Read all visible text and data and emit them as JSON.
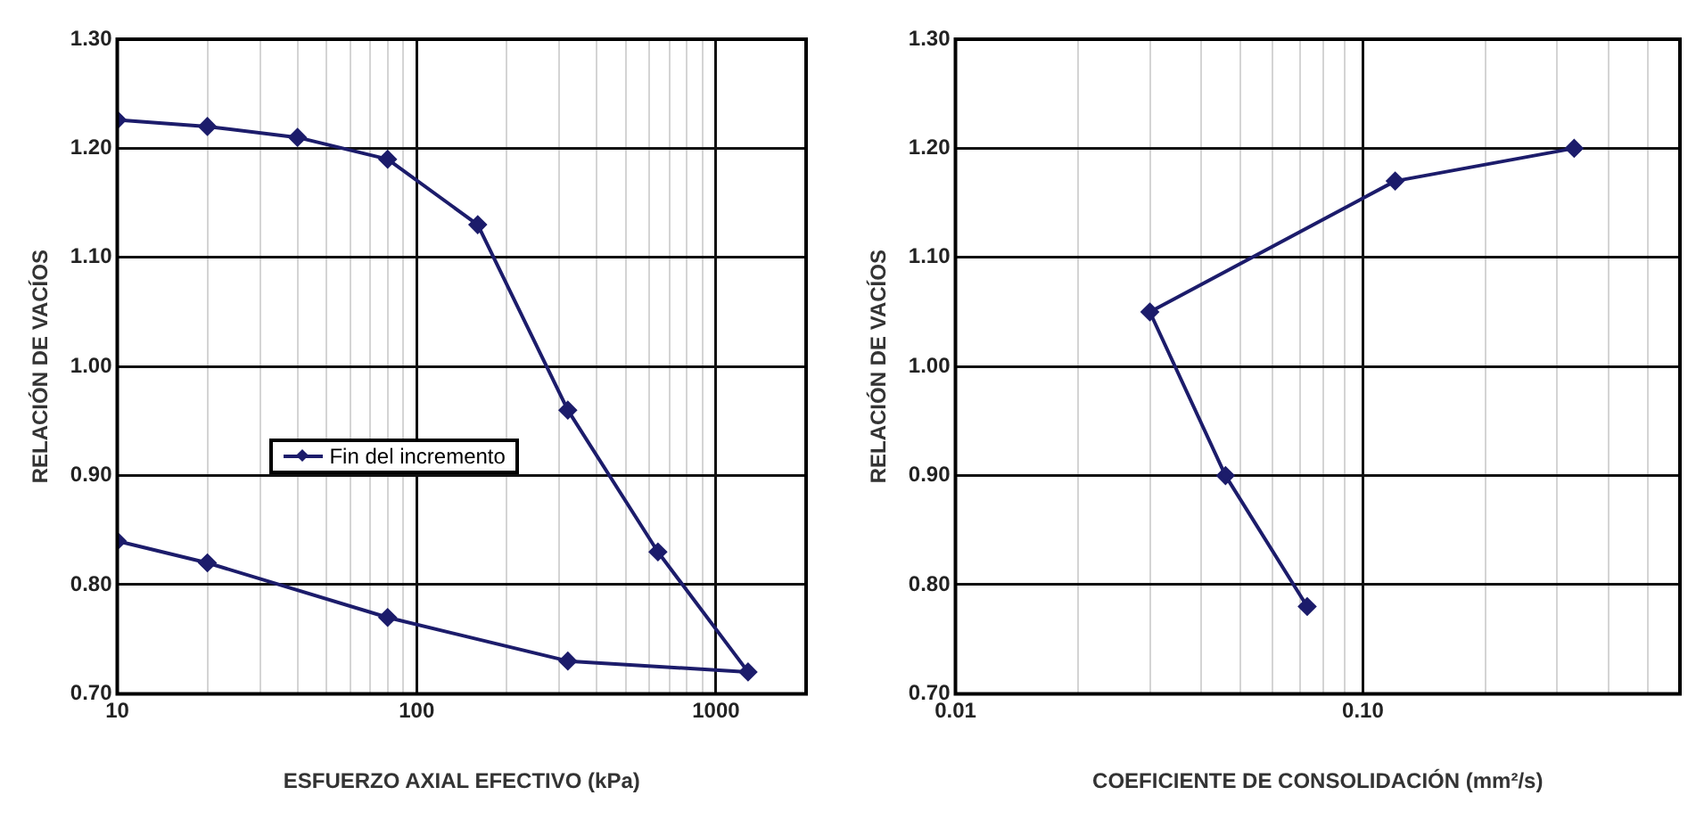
{
  "chart_data": [
    {
      "type": "line",
      "xlabel": "ESFUERZO AXIAL EFECTIVO (kPa)",
      "ylabel": "RELACIÓN DE VACÍOS",
      "log": "x",
      "grid": true,
      "legend": "left",
      "marker": "diamond",
      "line_style": "solid",
      "xlim": [
        10,
        2000
      ],
      "xticks": [
        10,
        {
          "value": 20,
          "label": null
        },
        {
          "value": 30,
          "label": null
        },
        {
          "value": 40,
          "label": null
        },
        {
          "value": 50,
          "label": null
        },
        {
          "value": 60,
          "label": null
        },
        {
          "value": 70,
          "label": null
        },
        {
          "value": 80,
          "label": null
        },
        {
          "value": 90,
          "label": null
        },
        100,
        {
          "value": 200,
          "label": null
        },
        {
          "value": 300,
          "label": null
        },
        {
          "value": 400,
          "label": null
        },
        {
          "value": 500,
          "label": null
        },
        {
          "value": 600,
          "label": null
        },
        {
          "value": 700,
          "label": null
        },
        {
          "value": 800,
          "label": null
        },
        {
          "value": 900,
          "label": null
        },
        1000
      ],
      "ylim": [
        0.7,
        1.3
      ],
      "yticks": [
        {
          "value": 0.7,
          "label": "0.70"
        },
        {
          "value": 0.8,
          "label": "0.80"
        },
        {
          "value": 0.9,
          "label": "0.90"
        },
        {
          "value": 1.0,
          "label": "1.00"
        },
        {
          "value": 1.1,
          "label": "1.10"
        },
        {
          "value": 1.2,
          "label": "1.20"
        },
        {
          "value": 1.3,
          "label": "1.30"
        }
      ],
      "series": [
        {
          "name": "Fin del incremento",
          "color": "#1c1c6b",
          "x": [
            10,
            20,
            40,
            80,
            160,
            320,
            640,
            1280,
            320,
            80,
            20,
            10
          ],
          "values": [
            1.226,
            1.22,
            1.21,
            1.19,
            1.13,
            0.96,
            0.83,
            0.72,
            0.73,
            0.77,
            0.82,
            0.84
          ]
        }
      ]
    },
    {
      "type": "line",
      "xlabel": "COEFICIENTE DE CONSOLIDACIÓN (mm²/s)",
      "ylabel": "RELACIÓN DE VACÍOS",
      "log": "x",
      "grid": true,
      "marker": "diamond",
      "line_style": "solid",
      "xlim": [
        0.01,
        0.6
      ],
      "xticks": [
        0.01,
        {
          "value": 0.02,
          "label": null
        },
        {
          "value": 0.03,
          "label": null
        },
        {
          "value": 0.04,
          "label": null
        },
        {
          "value": 0.05,
          "label": null
        },
        {
          "value": 0.06,
          "label": null
        },
        {
          "value": 0.07,
          "label": null
        },
        {
          "value": 0.08,
          "label": null
        },
        {
          "value": 0.09,
          "label": null
        },
        {
          "value": 0.1,
          "label": "0.10"
        },
        {
          "value": 0.2,
          "label": null
        },
        {
          "value": 0.3,
          "label": null
        },
        {
          "value": 0.4,
          "label": null
        },
        {
          "value": 0.5,
          "label": null
        }
      ],
      "ylim": [
        0.7,
        1.3
      ],
      "yticks": [
        {
          "value": 0.7,
          "label": "0.70"
        },
        {
          "value": 0.8,
          "label": "0.80"
        },
        {
          "value": 0.9,
          "label": "0.90"
        },
        {
          "value": 1.0,
          "label": "1.00"
        },
        {
          "value": 1.1,
          "label": "1.10"
        },
        {
          "value": 1.2,
          "label": "1.20"
        },
        {
          "value": 1.3,
          "label": "1.30"
        }
      ],
      "series": [
        {
          "color": "#1c1c6b",
          "x": [
            0.33,
            0.12,
            0.03,
            0.046,
            0.073
          ],
          "values": [
            1.2,
            1.17,
            1.05,
            0.9,
            0.78
          ]
        }
      ]
    }
  ]
}
